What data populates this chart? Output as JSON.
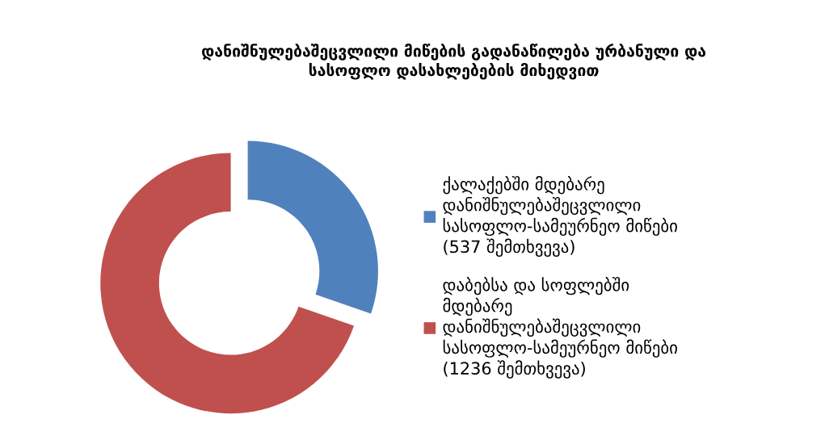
{
  "chart_data": {
    "type": "donut",
    "title": "დანიშნულებაშეცვლილი მიწების გადანაწილება ურბანული და\nსასოფლო დასახლებების მიხედვით",
    "categories": [
      "ქალაქებში მდებარე\nდანიშნულებაშეცვლილი\nსასოფლო-სამეურნეო მიწები\n(537 შემთხვევა)",
      "დაბებსა და სოფლებში\nმდებარე\nდანიშნულებაშეცვლილი\nსასოფლო-სამეურნეო მიწები\n(1236 შემთხვევა)"
    ],
    "values": [
      537,
      1236
    ],
    "colors": [
      "#4f81bd",
      "#c0504d"
    ],
    "legend": "right"
  }
}
